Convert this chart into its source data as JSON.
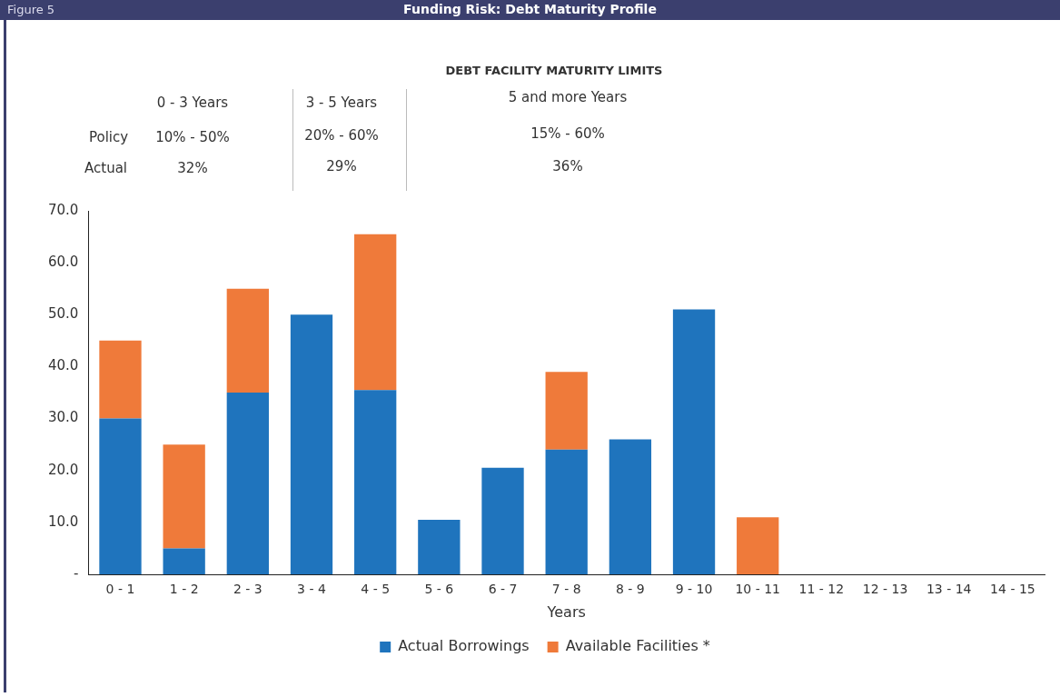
{
  "chart_data": {
    "type": "bar",
    "title": "Funding Risk: Debt Maturity Profile",
    "xlabel": "Years",
    "categories": [
      "0 - 1",
      "1 - 2",
      "2 - 3",
      "3 - 4",
      "4 - 5",
      "5 - 6",
      "6 - 7",
      "7 - 8",
      "8 - 9",
      "9 - 10",
      "10 - 11",
      "11 - 12",
      "12 - 13",
      "13 - 14",
      "14 - 15"
    ],
    "series": [
      {
        "name": "Actual Borrowings",
        "color": "#1f74bd",
        "values": [
          30,
          5,
          35,
          50,
          35.5,
          10.5,
          20.5,
          24,
          26,
          51,
          0,
          0,
          0,
          0,
          0
        ]
      },
      {
        "name": "Available Facilities *",
        "color": "#ef7a3a",
        "values": [
          15,
          20,
          20,
          0,
          30,
          0,
          0,
          15,
          0,
          0,
          11,
          0,
          0,
          0,
          0
        ]
      }
    ],
    "stacked": true,
    "ylim": [
      0,
      70
    ],
    "yticks": [
      {
        "value": 0,
        "label": "-"
      },
      {
        "value": 10,
        "label": "10.0"
      },
      {
        "value": 20,
        "label": "20.0"
      },
      {
        "value": 30,
        "label": "30.0"
      },
      {
        "value": 40,
        "label": "40.0"
      },
      {
        "value": 50,
        "label": "50.0"
      },
      {
        "value": 60,
        "label": "60.0"
      },
      {
        "value": 70,
        "label": "70.0"
      }
    ],
    "grid": false,
    "legend": "bottom",
    "annotations": [
      "Figure 5",
      "DEBT FACILITY MATURITY LIMITS",
      "0 - 3 Years",
      "3 - 5 Years",
      "5 and more Years",
      "Policy",
      "10% - 50%",
      "20% - 60%",
      "15% - 60%",
      "Actual",
      "32%",
      "29%",
      "36%"
    ]
  }
}
